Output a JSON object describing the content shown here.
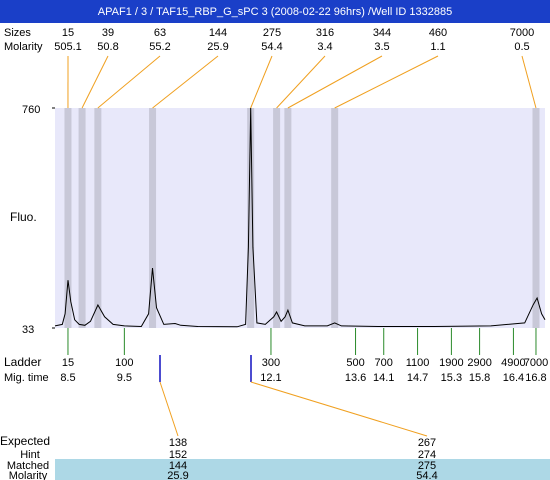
{
  "chart_data": {
    "type": "electropherogram",
    "title": "APAF1 / 3 / TAF15_RBP_G_sPC 3 (2008-02-22 96hrs) /Well ID 1332885",
    "sizes_label": "Sizes",
    "molarity_label": "Molarity",
    "peak_sizes": [
      15,
      39,
      63,
      144,
      275,
      316,
      344,
      460,
      7000
    ],
    "peak_molarity": [
      505.1,
      50.8,
      55.2,
      25.9,
      54.4,
      3.4,
      3.5,
      1.1,
      0.5
    ],
    "peak_times": [
      8.5,
      8.75,
      9.03,
      10.0,
      11.74,
      12.2,
      12.4,
      13.23,
      16.8
    ],
    "y_label": "Fluo.",
    "xlim": [
      8.27,
      16.96
    ],
    "ylim": [
      33,
      760
    ],
    "yticks": [
      33,
      760
    ],
    "trace": {
      "x": [
        8.27,
        8.4,
        8.45,
        8.5,
        8.55,
        8.62,
        8.7,
        8.8,
        8.9,
        9.03,
        9.15,
        9.3,
        9.5,
        9.8,
        9.93,
        10.0,
        10.07,
        10.2,
        10.4,
        10.5,
        10.8,
        11.5,
        11.65,
        11.7,
        11.74,
        11.78,
        11.85,
        12.0,
        12.15,
        12.2,
        12.28,
        12.35,
        12.4,
        12.48,
        12.7,
        13.1,
        13.23,
        13.35,
        14,
        15,
        16,
        16.6,
        16.75,
        16.82,
        16.9,
        16.96
      ],
      "values": [
        40,
        45,
        80,
        191,
        120,
        60,
        45,
        42,
        55,
        109,
        70,
        45,
        40,
        38,
        80,
        231,
        100,
        45,
        48,
        42,
        38,
        37,
        45,
        300,
        760,
        300,
        50,
        45,
        70,
        86,
        55,
        70,
        92,
        50,
        40,
        40,
        50,
        40,
        38,
        38,
        40,
        50,
        110,
        132,
        80,
        60
      ]
    },
    "ladder_label": "Ladder",
    "mig_label": "Mig. time",
    "ladder_sizes": [
      15,
      100,
      300,
      500,
      700,
      1100,
      1900,
      2900,
      4900,
      7000
    ],
    "ladder_times": [
      8.5,
      9.5,
      12.1,
      13.6,
      14.1,
      14.7,
      15.3,
      15.8,
      16.4,
      16.8
    ],
    "expected_label": "Expected",
    "hint_label": "Hint",
    "matched_label": "Matched",
    "molarity2_label": "Molarity",
    "expected": [
      138,
      267
    ],
    "hint": [
      152,
      274
    ],
    "matched": [
      144,
      275
    ],
    "matched_molarity": [
      25.9,
      54.4
    ]
  }
}
